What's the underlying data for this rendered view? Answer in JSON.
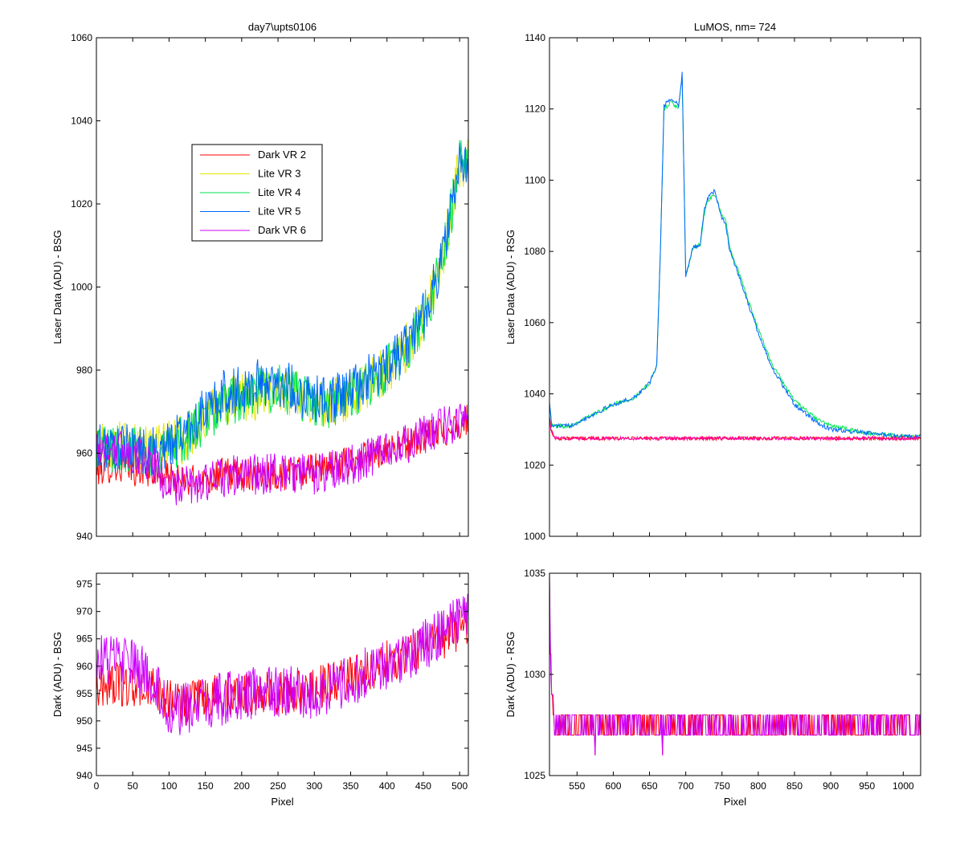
{
  "figure": {
    "background": "#ffffff",
    "series_colors": {
      "Dark VR 2": "#ff0000",
      "Lite VR 3": "#e6e600",
      "Lite VR 4": "#00e64d",
      "Lite VR 5": "#0066ff",
      "Dark VR 6": "#cc00ff"
    }
  },
  "chart_data": [
    {
      "id": "top-left",
      "type": "line",
      "title": "day7\\upts0106",
      "xlabel": "",
      "ylabel": "Laser Data (ADU) - BSG",
      "xlim": [
        0,
        512
      ],
      "ylim": [
        940,
        1060
      ],
      "xticks": [
        0,
        50,
        100,
        150,
        200,
        250,
        300,
        350,
        400,
        450,
        500
      ],
      "xticklabels_shown": false,
      "yticks": [
        940,
        960,
        980,
        1000,
        1020,
        1040,
        1060
      ],
      "legend_position": "upper-left",
      "legend": [
        "Dark VR 2",
        "Lite VR 3",
        "Lite VR 4",
        "Lite VR 5",
        "Dark VR 6"
      ],
      "series": [
        {
          "name": "Dark VR 2",
          "color": "#ff0000",
          "x": [
            0,
            25,
            50,
            75,
            100,
            125,
            150,
            175,
            200,
            225,
            250,
            275,
            300,
            325,
            350,
            375,
            400,
            425,
            450,
            475,
            500,
            512
          ],
          "y": [
            956,
            957,
            956,
            956,
            954,
            953,
            954,
            955,
            955,
            955,
            955,
            955,
            956,
            957,
            958,
            959,
            961,
            962,
            964,
            965,
            967,
            968
          ],
          "noise": 4
        },
        {
          "name": "Lite VR 3",
          "color": "#e6e600",
          "x": [
            0,
            25,
            50,
            75,
            100,
            125,
            150,
            175,
            200,
            225,
            250,
            275,
            300,
            325,
            350,
            375,
            400,
            425,
            450,
            475,
            490,
            500,
            512
          ],
          "y": [
            963,
            962,
            962,
            961,
            962,
            964,
            968,
            972,
            973,
            974,
            976,
            974,
            972,
            972,
            974,
            977,
            980,
            985,
            992,
            1005,
            1020,
            1030,
            1030
          ],
          "noise": 6
        },
        {
          "name": "Lite VR 4",
          "color": "#00e64d",
          "x": [
            0,
            25,
            50,
            75,
            100,
            125,
            150,
            175,
            200,
            225,
            250,
            275,
            300,
            325,
            350,
            375,
            400,
            425,
            450,
            475,
            490,
            500,
            512
          ],
          "y": [
            962,
            961,
            961,
            960,
            961,
            964,
            968,
            972,
            973,
            975,
            976,
            974,
            972,
            972,
            974,
            977,
            980,
            985,
            992,
            1005,
            1020,
            1030,
            1030
          ],
          "noise": 6
        },
        {
          "name": "Lite VR 5",
          "color": "#0066ff",
          "x": [
            0,
            25,
            50,
            75,
            100,
            125,
            150,
            175,
            200,
            225,
            250,
            275,
            300,
            325,
            350,
            375,
            400,
            425,
            450,
            475,
            490,
            500,
            512
          ],
          "y": [
            961,
            961,
            961,
            960,
            962,
            966,
            970,
            974,
            975,
            977,
            977,
            975,
            973,
            973,
            975,
            978,
            981,
            986,
            993,
            1006,
            1020,
            1030,
            1030
          ],
          "noise": 6
        },
        {
          "name": "Dark VR 6",
          "color": "#cc00ff",
          "x": [
            0,
            25,
            50,
            75,
            100,
            125,
            150,
            175,
            200,
            225,
            250,
            275,
            300,
            325,
            350,
            375,
            400,
            425,
            450,
            475,
            500,
            512
          ],
          "y": [
            962,
            961,
            960,
            958,
            952,
            952,
            953,
            954,
            955,
            955,
            955,
            955,
            955,
            956,
            957,
            959,
            960,
            962,
            964,
            966,
            968,
            969
          ],
          "noise": 5
        }
      ]
    },
    {
      "id": "top-right",
      "type": "line",
      "title": "LuMOS, nm= 724",
      "xlabel": "",
      "ylabel": "Laser Data (ADU) - RSG",
      "xlim": [
        512,
        1024
      ],
      "ylim": [
        1000,
        1140
      ],
      "xticks": [
        550,
        600,
        650,
        700,
        750,
        800,
        850,
        900,
        950,
        1000
      ],
      "xticklabels_shown": false,
      "yticks": [
        1000,
        1020,
        1040,
        1060,
        1080,
        1100,
        1120,
        1140
      ],
      "series": [
        {
          "name": "Lite VR 4",
          "color": "#00e64d",
          "x": [
            512,
            515,
            530,
            540,
            550,
            600,
            630,
            650,
            660,
            665,
            670,
            680,
            690,
            695,
            700,
            710,
            720,
            725,
            730,
            740,
            750,
            755,
            760,
            780,
            800,
            820,
            850,
            880,
            900,
            950,
            1000,
            1024
          ],
          "y": [
            1038,
            1031,
            1031,
            1031,
            1032,
            1037,
            1039,
            1043,
            1048,
            1080,
            1120,
            1122,
            1120,
            1129,
            1073,
            1081,
            1082,
            1090,
            1094,
            1096,
            1090,
            1089,
            1082,
            1070,
            1058,
            1048,
            1038,
            1033,
            1031,
            1029,
            1028,
            1028
          ],
          "noise": 0.6
        },
        {
          "name": "Lite VR 5",
          "color": "#0066ff",
          "x": [
            512,
            515,
            530,
            540,
            550,
            600,
            630,
            650,
            660,
            665,
            670,
            680,
            690,
            695,
            700,
            710,
            720,
            725,
            730,
            740,
            750,
            755,
            760,
            780,
            800,
            820,
            850,
            880,
            900,
            950,
            1000,
            1024
          ],
          "y": [
            1038,
            1031,
            1031,
            1031,
            1032,
            1037,
            1039,
            1043,
            1048,
            1080,
            1121,
            1123,
            1121,
            1130,
            1073,
            1081,
            1082,
            1091,
            1095,
            1097,
            1089,
            1088,
            1081,
            1069,
            1057,
            1047,
            1037,
            1032,
            1030,
            1029,
            1028,
            1028
          ],
          "noise": 0.6
        },
        {
          "name": "Dark VR 2",
          "color": "#ff0000",
          "x": [
            512,
            514,
            516,
            520,
            1024
          ],
          "y": [
            1034,
            1030,
            1029,
            1027.5,
            1027.5
          ],
          "noise": 0.5
        },
        {
          "name": "Dark VR 6",
          "color": "#ff00aa",
          "x": [
            512,
            514,
            516,
            520,
            1024
          ],
          "y": [
            1034,
            1030,
            1029,
            1027.5,
            1027.5
          ],
          "noise": 0.5
        }
      ]
    },
    {
      "id": "bottom-left",
      "type": "line",
      "title": "",
      "xlabel": "Pixel",
      "ylabel": "Dark (ADU) - BSG",
      "xlim": [
        0,
        512
      ],
      "ylim": [
        940,
        977
      ],
      "xticks": [
        0,
        50,
        100,
        150,
        200,
        250,
        300,
        350,
        400,
        450,
        500
      ],
      "xticklabels_shown": true,
      "yticks": [
        940,
        945,
        950,
        955,
        960,
        965,
        970,
        975
      ],
      "series": [
        {
          "name": "Dark VR 2",
          "color": "#ff0000",
          "x": [
            0,
            25,
            50,
            75,
            100,
            125,
            150,
            175,
            200,
            225,
            250,
            275,
            300,
            325,
            350,
            375,
            400,
            425,
            450,
            475,
            500,
            512
          ],
          "y": [
            956,
            957,
            956,
            956,
            954,
            953,
            954,
            955,
            955,
            955,
            955,
            955,
            956,
            957,
            958,
            959,
            961,
            962,
            964,
            965,
            967,
            968
          ],
          "noise": 4
        },
        {
          "name": "Dark VR 6",
          "color": "#cc00ff",
          "x": [
            0,
            25,
            50,
            75,
            100,
            125,
            150,
            175,
            200,
            225,
            250,
            275,
            300,
            325,
            350,
            375,
            400,
            425,
            450,
            475,
            500,
            512
          ],
          "y": [
            962,
            961,
            960,
            958,
            952,
            952,
            953,
            954,
            955,
            955,
            955,
            955,
            955,
            956,
            957,
            959,
            960,
            962,
            964,
            966,
            968,
            969
          ],
          "noise": 5
        }
      ]
    },
    {
      "id": "bottom-right",
      "type": "line",
      "title": "",
      "xlabel": "Pixel",
      "ylabel": "Dark (ADU) - RSG",
      "xlim": [
        512,
        1024
      ],
      "ylim": [
        1025,
        1035
      ],
      "xticks": [
        550,
        600,
        650,
        700,
        750,
        800,
        850,
        900,
        950,
        1000
      ],
      "xticklabels_shown": true,
      "yticks": [
        1025,
        1030,
        1035
      ],
      "series": [
        {
          "name": "Dark VR 2",
          "color": "#ff0000",
          "x": [
            512,
            513,
            514,
            515,
            516,
            518,
            520,
            1024
          ],
          "y": [
            1034,
            1031,
            1030,
            1029,
            1028.5,
            1028,
            1027.5,
            1027.5
          ],
          "noise": 0.5,
          "quantized": true
        },
        {
          "name": "Dark VR 6",
          "color": "#cc00ff",
          "x": [
            512,
            513,
            514,
            515,
            516,
            518,
            520,
            1024
          ],
          "y": [
            1034,
            1031,
            1030,
            1029,
            1028.5,
            1028,
            1027.5,
            1027.5
          ],
          "noise": 0.5,
          "quantized": true
        }
      ]
    }
  ]
}
